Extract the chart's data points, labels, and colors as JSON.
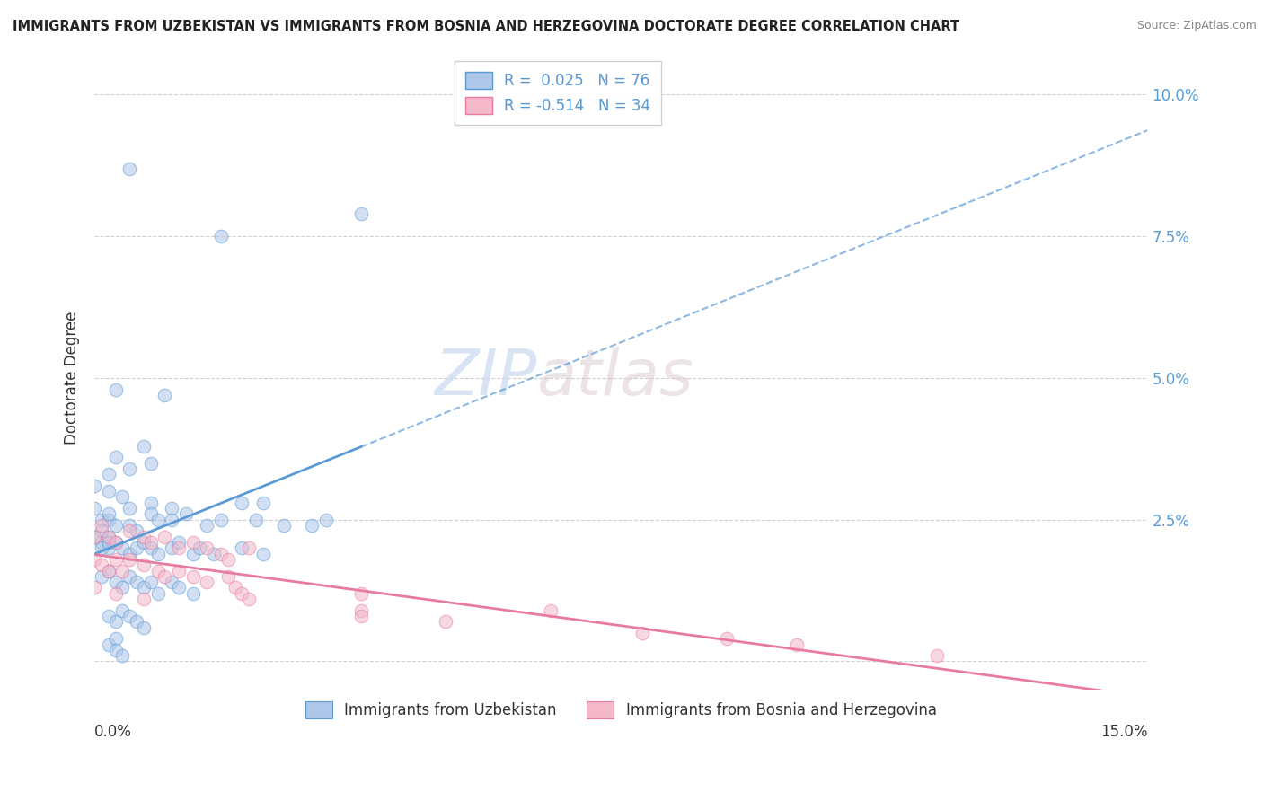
{
  "title": "IMMIGRANTS FROM UZBEKISTAN VS IMMIGRANTS FROM BOSNIA AND HERZEGOVINA DOCTORATE DEGREE CORRELATION CHART",
  "source": "Source: ZipAtlas.com",
  "ylabel": "Doctorate Degree",
  "ytick_values": [
    0.0,
    0.025,
    0.05,
    0.075,
    0.1
  ],
  "xlim": [
    0.0,
    0.15
  ],
  "ylim": [
    -0.005,
    0.105
  ],
  "legend_label1": "Immigrants from Uzbekistan",
  "legend_label2": "Immigrants from Bosnia and Herzegovina",
  "watermark_zip": "ZIP",
  "watermark_atlas": "atlas",
  "uzbekistan_color": "#5b9bd5",
  "bosnia_color": "#e87ba0",
  "uzbekistan_fill": "#aec6e8",
  "bosnia_fill": "#f4b8c8",
  "grid_color": "#cccccc",
  "background_color": "#ffffff",
  "uzbekistan_dots": [
    [
      0.005,
      0.087
    ],
    [
      0.018,
      0.075
    ],
    [
      0.038,
      0.079
    ],
    [
      0.003,
      0.048
    ],
    [
      0.01,
      0.047
    ],
    [
      0.0,
      0.031
    ],
    [
      0.002,
      0.033
    ],
    [
      0.003,
      0.036
    ],
    [
      0.005,
      0.034
    ],
    [
      0.007,
      0.038
    ],
    [
      0.008,
      0.035
    ],
    [
      0.002,
      0.03
    ],
    [
      0.004,
      0.029
    ],
    [
      0.005,
      0.027
    ],
    [
      0.008,
      0.028
    ],
    [
      0.011,
      0.027
    ],
    [
      0.024,
      0.028
    ],
    [
      0.0,
      0.027
    ],
    [
      0.001,
      0.025
    ],
    [
      0.002,
      0.025
    ],
    [
      0.002,
      0.026
    ],
    [
      0.003,
      0.024
    ],
    [
      0.005,
      0.024
    ],
    [
      0.006,
      0.023
    ],
    [
      0.008,
      0.026
    ],
    [
      0.009,
      0.025
    ],
    [
      0.011,
      0.025
    ],
    [
      0.013,
      0.026
    ],
    [
      0.016,
      0.024
    ],
    [
      0.018,
      0.025
    ],
    [
      0.021,
      0.028
    ],
    [
      0.023,
      0.025
    ],
    [
      0.027,
      0.024
    ],
    [
      0.031,
      0.024
    ],
    [
      0.033,
      0.025
    ],
    [
      0.001,
      0.021
    ],
    [
      0.002,
      0.022
    ],
    [
      0.002,
      0.02
    ],
    [
      0.003,
      0.021
    ],
    [
      0.004,
      0.02
    ],
    [
      0.005,
      0.019
    ],
    [
      0.006,
      0.02
    ],
    [
      0.007,
      0.021
    ],
    [
      0.008,
      0.02
    ],
    [
      0.009,
      0.019
    ],
    [
      0.011,
      0.02
    ],
    [
      0.012,
      0.021
    ],
    [
      0.014,
      0.019
    ],
    [
      0.015,
      0.02
    ],
    [
      0.017,
      0.019
    ],
    [
      0.021,
      0.02
    ],
    [
      0.024,
      0.019
    ],
    [
      0.001,
      0.015
    ],
    [
      0.002,
      0.016
    ],
    [
      0.003,
      0.014
    ],
    [
      0.004,
      0.013
    ],
    [
      0.005,
      0.015
    ],
    [
      0.006,
      0.014
    ],
    [
      0.007,
      0.013
    ],
    [
      0.008,
      0.014
    ],
    [
      0.009,
      0.012
    ],
    [
      0.011,
      0.014
    ],
    [
      0.012,
      0.013
    ],
    [
      0.014,
      0.012
    ],
    [
      0.002,
      0.008
    ],
    [
      0.003,
      0.007
    ],
    [
      0.004,
      0.009
    ],
    [
      0.005,
      0.008
    ],
    [
      0.006,
      0.007
    ],
    [
      0.007,
      0.006
    ],
    [
      0.002,
      0.003
    ],
    [
      0.003,
      0.004
    ],
    [
      0.003,
      0.002
    ],
    [
      0.004,
      0.001
    ],
    [
      0.0,
      0.022
    ],
    [
      0.001,
      0.023
    ],
    [
      0.001,
      0.02
    ],
    [
      0.002,
      0.021
    ]
  ],
  "bosnia_dots": [
    [
      0.0,
      0.022
    ],
    [
      0.001,
      0.024
    ],
    [
      0.002,
      0.022
    ],
    [
      0.003,
      0.021
    ],
    [
      0.005,
      0.023
    ],
    [
      0.007,
      0.022
    ],
    [
      0.008,
      0.021
    ],
    [
      0.01,
      0.022
    ],
    [
      0.012,
      0.02
    ],
    [
      0.014,
      0.021
    ],
    [
      0.016,
      0.02
    ],
    [
      0.018,
      0.019
    ],
    [
      0.019,
      0.018
    ],
    [
      0.022,
      0.02
    ],
    [
      0.0,
      0.018
    ],
    [
      0.001,
      0.017
    ],
    [
      0.002,
      0.016
    ],
    [
      0.003,
      0.018
    ],
    [
      0.004,
      0.016
    ],
    [
      0.005,
      0.018
    ],
    [
      0.007,
      0.017
    ],
    [
      0.009,
      0.016
    ],
    [
      0.01,
      0.015
    ],
    [
      0.012,
      0.016
    ],
    [
      0.014,
      0.015
    ],
    [
      0.016,
      0.014
    ],
    [
      0.019,
      0.015
    ],
    [
      0.0,
      0.013
    ],
    [
      0.003,
      0.012
    ],
    [
      0.007,
      0.011
    ],
    [
      0.02,
      0.013
    ],
    [
      0.021,
      0.012
    ],
    [
      0.022,
      0.011
    ],
    [
      0.038,
      0.012
    ],
    [
      0.038,
      0.009
    ],
    [
      0.038,
      0.008
    ],
    [
      0.05,
      0.007
    ],
    [
      0.065,
      0.009
    ],
    [
      0.078,
      0.005
    ],
    [
      0.09,
      0.004
    ],
    [
      0.1,
      0.003
    ],
    [
      0.12,
      0.001
    ]
  ],
  "trendline_uz_x0": 0.0,
  "trendline_uz_x_solid_end": 0.035,
  "trendline_uz_x1": 0.15,
  "trendline_bos_x0": 0.0,
  "trendline_bos_x1": 0.15,
  "dot_size": 110,
  "dot_alpha": 0.55
}
